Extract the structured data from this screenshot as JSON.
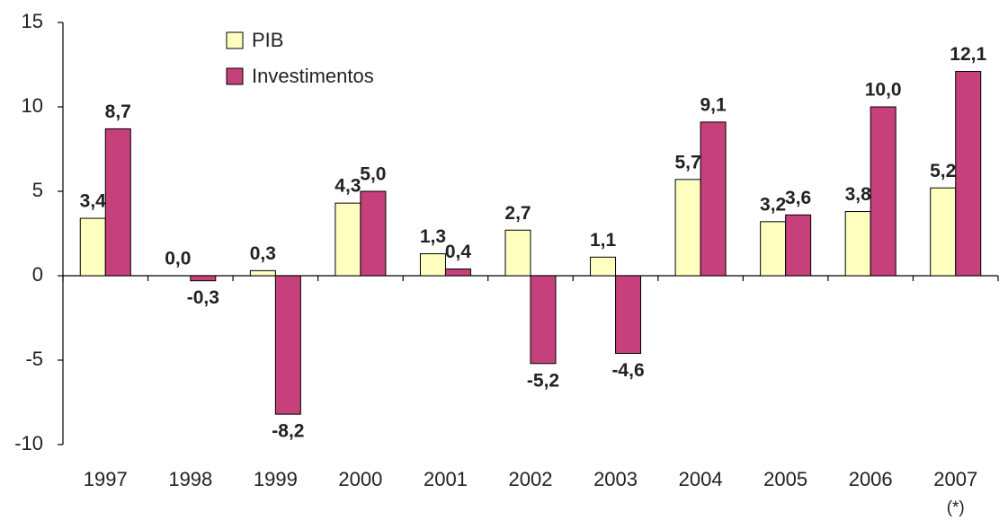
{
  "chart_data": {
    "type": "bar",
    "categories": [
      "1997",
      "1998",
      "1999",
      "2000",
      "2001",
      "2002",
      "2003",
      "2004",
      "2005",
      "2006",
      "2007"
    ],
    "annotations": [
      "(*)"
    ],
    "series": [
      {
        "name": "PIB",
        "color": "#ffffc0",
        "values": [
          3.4,
          0.0,
          0.3,
          4.3,
          1.3,
          2.7,
          1.1,
          5.7,
          3.2,
          3.8,
          5.2
        ],
        "value_labels": [
          "3,4",
          "0,0",
          "0,3",
          "4,3",
          "1,3",
          "2,7",
          "1,1",
          "5,7",
          "3,2",
          "3,8",
          "5,2"
        ]
      },
      {
        "name": "Investimentos",
        "color": "#c6407c",
        "values": [
          8.7,
          -0.3,
          -8.2,
          5.0,
          0.4,
          -5.2,
          -4.6,
          9.1,
          3.6,
          10.0,
          12.1
        ],
        "value_labels": [
          "8,7",
          "-0,3",
          "-8,2",
          "5,0",
          "0,4",
          "-5,2",
          "-4,6",
          "9,1",
          "3,6",
          "10,0",
          "12,1"
        ]
      }
    ],
    "ylim": [
      -10,
      15
    ],
    "yticks": [
      15,
      10,
      5,
      0,
      -5,
      -10
    ],
    "grid": false,
    "legend": "top-left"
  }
}
